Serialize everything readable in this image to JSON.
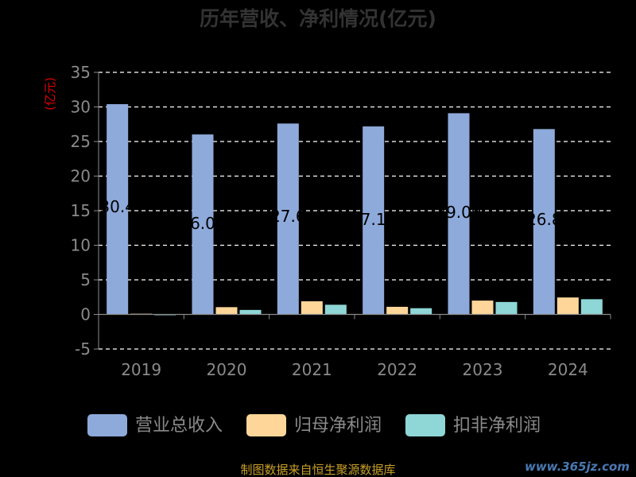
{
  "chart_data": {
    "type": "bar",
    "title": "历年营收、净利情况(亿元)",
    "ylabel": "(亿元)",
    "categories": [
      "2019",
      "2020",
      "2021",
      "2022",
      "2023",
      "2024"
    ],
    "series": [
      {
        "name": "营业总收入",
        "color": "#8eaadb",
        "values": [
          30.4,
          26.02,
          27.6,
          27.18,
          29.09,
          26.8
        ]
      },
      {
        "name": "归母净利润",
        "color": "#ffd699",
        "values": [
          0.1,
          1.05,
          1.9,
          1.1,
          2.0,
          2.45
        ]
      },
      {
        "name": "扣非净利润",
        "color": "#8fd6d6",
        "values": [
          -0.05,
          0.65,
          1.4,
          0.9,
          1.8,
          2.2
        ]
      }
    ],
    "data_labels": [
      "30.4",
      "26.02",
      "27.6",
      "27.18",
      "29.09",
      "26.8"
    ],
    "ylim": [
      -5,
      35
    ],
    "yticks": [
      -5,
      0,
      5,
      10,
      15,
      20,
      25,
      30,
      35
    ],
    "ytick_labels": [
      "-5",
      "0",
      "5",
      "10",
      "15",
      "20",
      "25",
      "30",
      "35"
    ],
    "grid": true,
    "legend_position": "bottom"
  },
  "footer": {
    "source": "制图数据来自恒生聚源数据库",
    "watermark": "www.365jz.com"
  }
}
